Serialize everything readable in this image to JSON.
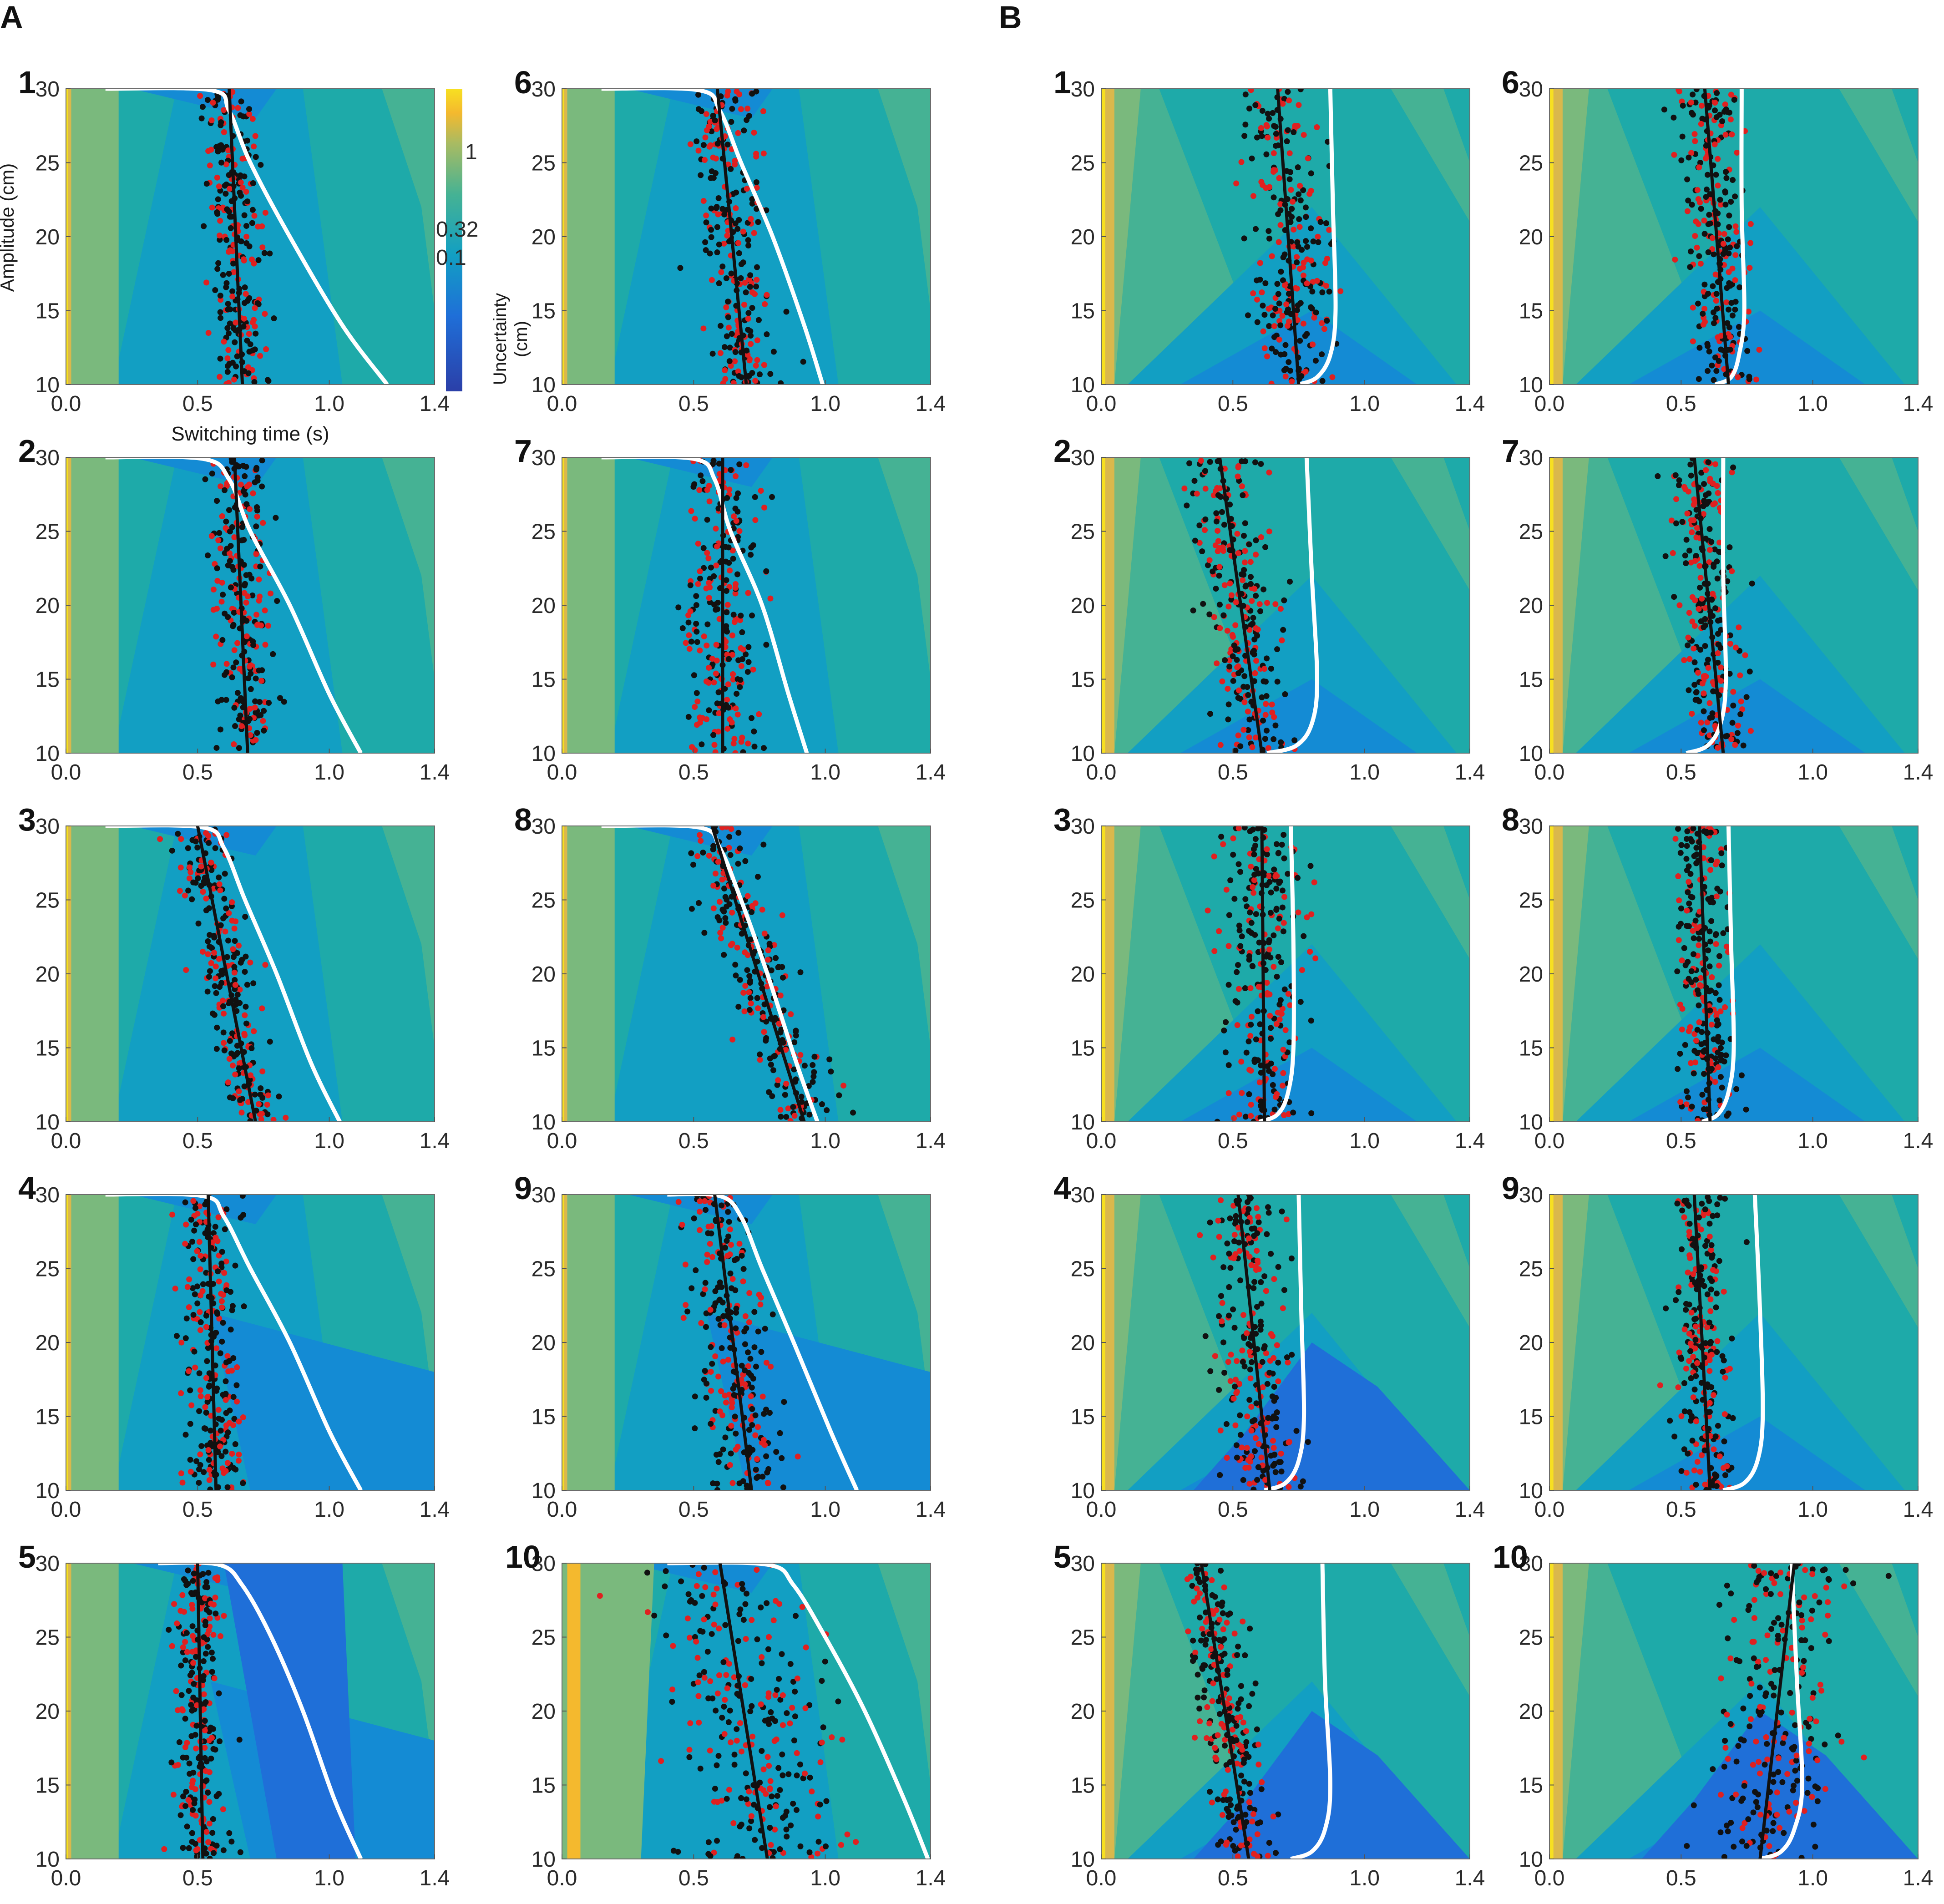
{
  "group_labels": [
    "A",
    "B"
  ],
  "palette": {
    "levels": [
      "#2b3fa8",
      "#1f6fd8",
      "#148bd4",
      "#129fc3",
      "#1eaaa9",
      "#45b294",
      "#7ab97d",
      "#a9bb62",
      "#dab84c",
      "#f4b92e",
      "#f7e021"
    ],
    "dot_red": "#e02020",
    "dot_black": "#111111",
    "fit_line": "#111111",
    "optimal_curve": "#ffffff"
  },
  "colorbar": {
    "title": "Uncertainty\n(cm)",
    "title_lines": [
      "Uncertainty",
      "(cm)"
    ],
    "tick_labels": [
      "1",
      "0.32",
      "0.1"
    ],
    "tick_values": [
      1,
      0.32,
      0.1
    ]
  },
  "axes": {
    "xlabel": "Switching time (s)",
    "ylabel": "Amplitude (cm)",
    "xlim": [
      0.0,
      1.4
    ],
    "ylim": [
      10,
      30
    ],
    "xticks": [
      0.0,
      0.5,
      1.0,
      1.4
    ],
    "xtick_labels": [
      "0.0",
      "0.5",
      "1.0",
      "1.4"
    ],
    "yticks": [
      10,
      15,
      20,
      25,
      30
    ],
    "ytick_labels": [
      "10",
      "15",
      "20",
      "25",
      "30"
    ]
  },
  "chart_data": [
    {
      "group": "A",
      "panel": "1",
      "type": "scatter",
      "fit_line": {
        "x": [
          0.62,
          0.67
        ],
        "y": [
          30,
          10
        ]
      },
      "optimal_curve": {
        "x": [
          0.15,
          0.55,
          0.62,
          0.7,
          0.85,
          1.05,
          1.22
        ],
        "y": [
          30,
          29.9,
          28.5,
          25,
          20,
          14,
          10
        ]
      },
      "scatter_spread": 0.09
    },
    {
      "group": "A",
      "panel": "2",
      "type": "scatter",
      "fit_line": {
        "x": [
          0.64,
          0.69
        ],
        "y": [
          30,
          10
        ]
      },
      "optimal_curve": {
        "x": [
          0.15,
          0.52,
          0.62,
          0.7,
          0.85,
          1.0,
          1.12
        ],
        "y": [
          30,
          29.9,
          28.5,
          25,
          20,
          14,
          10
        ]
      },
      "scatter_spread": 0.1
    },
    {
      "group": "A",
      "panel": "3",
      "type": "scatter",
      "fit_line": {
        "x": [
          0.5,
          0.72
        ],
        "y": [
          30,
          10
        ]
      },
      "optimal_curve": {
        "x": [
          0.15,
          0.52,
          0.6,
          0.68,
          0.8,
          0.93,
          1.04
        ],
        "y": [
          30,
          29.9,
          28.5,
          25,
          20,
          14,
          10
        ]
      },
      "scatter_spread": 0.1
    },
    {
      "group": "A",
      "panel": "4",
      "type": "scatter",
      "fit_line": {
        "x": [
          0.54,
          0.57
        ],
        "y": [
          30,
          10
        ]
      },
      "optimal_curve": {
        "x": [
          0.15,
          0.52,
          0.6,
          0.7,
          0.85,
          1.0,
          1.12
        ],
        "y": [
          30,
          29.9,
          28.5,
          25,
          20,
          14,
          10
        ]
      },
      "scatter_spread": 0.1
    },
    {
      "group": "A",
      "panel": "5",
      "type": "scatter",
      "fit_line": {
        "x": [
          0.5,
          0.52
        ],
        "y": [
          30,
          10
        ]
      },
      "optimal_curve": {
        "x": [
          0.35,
          0.58,
          0.67,
          0.78,
          0.9,
          1.02,
          1.12
        ],
        "y": [
          30,
          29.9,
          28.5,
          25,
          20,
          14,
          10
        ]
      },
      "scatter_spread": 0.08
    },
    {
      "group": "A",
      "panel": "6",
      "type": "scatter",
      "fit_line": {
        "x": [
          0.59,
          0.7
        ],
        "y": [
          30,
          10
        ]
      },
      "optimal_curve": {
        "x": [
          0.15,
          0.52,
          0.6,
          0.68,
          0.8,
          0.92,
          0.99
        ],
        "y": [
          30,
          29.9,
          28.5,
          25,
          20,
          14,
          10
        ]
      },
      "scatter_spread": 0.12
    },
    {
      "group": "A",
      "panel": "7",
      "type": "scatter",
      "fit_line": {
        "x": [
          0.61,
          0.61
        ],
        "y": [
          30,
          10
        ]
      },
      "optimal_curve": {
        "x": [
          0.15,
          0.5,
          0.58,
          0.64,
          0.76,
          0.86,
          0.93
        ],
        "y": [
          30,
          29.9,
          28.5,
          25,
          20,
          14,
          10
        ]
      },
      "scatter_spread": 0.12
    },
    {
      "group": "A",
      "panel": "8",
      "type": "scatter",
      "fit_line": {
        "x": [
          0.57,
          0.92
        ],
        "y": [
          30,
          10
        ]
      },
      "optimal_curve": {
        "x": [
          0.15,
          0.52,
          0.6,
          0.68,
          0.78,
          0.89,
          0.97
        ],
        "y": [
          30,
          29.9,
          28.5,
          25,
          20,
          14,
          10
        ]
      },
      "scatter_spread": 0.12
    },
    {
      "group": "A",
      "panel": "9",
      "type": "scatter",
      "fit_line": {
        "x": [
          0.58,
          0.72
        ],
        "y": [
          30,
          10
        ]
      },
      "optimal_curve": {
        "x": [
          0.4,
          0.6,
          0.68,
          0.76,
          0.88,
          1.02,
          1.12
        ],
        "y": [
          30,
          29.9,
          28.5,
          25,
          20,
          14,
          10
        ]
      },
      "scatter_spread": 0.12
    },
    {
      "group": "A",
      "panel": "10",
      "type": "scatter",
      "fit_line": {
        "x": [
          0.6,
          0.78
        ],
        "y": [
          30,
          10
        ]
      },
      "optimal_curve": {
        "x": [
          0.4,
          0.78,
          0.88,
          1.0,
          1.15,
          1.3,
          1.39
        ],
        "y": [
          30,
          29.9,
          28.5,
          25,
          20,
          14,
          10
        ]
      },
      "scatter_spread": 0.28
    },
    {
      "group": "B",
      "panel": "1",
      "type": "scatter",
      "fit_line": {
        "x": [
          0.67,
          0.75
        ],
        "y": [
          30,
          10
        ]
      },
      "optimal_curve": {
        "x": [
          0.87,
          0.88,
          0.89,
          0.87,
          0.82,
          0.75
        ],
        "y": [
          30,
          22,
          15,
          12,
          10.5,
          10
        ]
      },
      "scatter_spread": 0.14
    },
    {
      "group": "B",
      "panel": "2",
      "type": "scatter",
      "fit_line": {
        "x": [
          0.45,
          0.61
        ],
        "y": [
          30,
          10
        ]
      },
      "optimal_curve": {
        "x": [
          0.78,
          0.8,
          0.82,
          0.8,
          0.74,
          0.63
        ],
        "y": [
          30,
          22,
          15,
          12,
          10.5,
          10
        ]
      },
      "scatter_spread": 0.12
    },
    {
      "group": "B",
      "panel": "3",
      "type": "scatter",
      "fit_line": {
        "x": [
          0.61,
          0.62
        ],
        "y": [
          30,
          10
        ]
      },
      "optimal_curve": {
        "x": [
          0.72,
          0.73,
          0.73,
          0.71,
          0.67,
          0.6
        ],
        "y": [
          30,
          22,
          15,
          12,
          10.5,
          10
        ]
      },
      "scatter_spread": 0.13
    },
    {
      "group": "B",
      "panel": "4",
      "type": "scatter",
      "fit_line": {
        "x": [
          0.52,
          0.64
        ],
        "y": [
          30,
          10
        ]
      },
      "optimal_curve": {
        "x": [
          0.75,
          0.76,
          0.77,
          0.75,
          0.7,
          0.62
        ],
        "y": [
          30,
          22,
          15,
          12,
          10.5,
          10
        ]
      },
      "scatter_spread": 0.13
    },
    {
      "group": "B",
      "panel": "5",
      "type": "scatter",
      "fit_line": {
        "x": [
          0.38,
          0.56
        ],
        "y": [
          30,
          10
        ]
      },
      "optimal_curve": {
        "x": [
          0.84,
          0.85,
          0.87,
          0.85,
          0.8,
          0.72
        ],
        "y": [
          30,
          22,
          15,
          12,
          10.5,
          10
        ]
      },
      "scatter_spread": 0.09
    },
    {
      "group": "B",
      "panel": "6",
      "type": "scatter",
      "fit_line": {
        "x": [
          0.59,
          0.68
        ],
        "y": [
          30,
          10
        ]
      },
      "optimal_curve": {
        "x": [
          0.73,
          0.73,
          0.74,
          0.72,
          0.69,
          0.63
        ],
        "y": [
          30,
          22,
          15,
          12,
          10.5,
          10
        ]
      },
      "scatter_spread": 0.1
    },
    {
      "group": "B",
      "panel": "7",
      "type": "scatter",
      "fit_line": {
        "x": [
          0.55,
          0.66
        ],
        "y": [
          30,
          10
        ]
      },
      "optimal_curve": {
        "x": [
          0.66,
          0.66,
          0.67,
          0.65,
          0.6,
          0.52
        ],
        "y": [
          30,
          22,
          15,
          12,
          10.5,
          10
        ]
      },
      "scatter_spread": 0.1
    },
    {
      "group": "B",
      "panel": "8",
      "type": "scatter",
      "fit_line": {
        "x": [
          0.57,
          0.61
        ],
        "y": [
          30,
          10
        ]
      },
      "optimal_curve": {
        "x": [
          0.68,
          0.69,
          0.7,
          0.68,
          0.64,
          0.58
        ],
        "y": [
          30,
          22,
          15,
          12,
          10.5,
          10
        ]
      },
      "scatter_spread": 0.1
    },
    {
      "group": "B",
      "panel": "9",
      "type": "scatter",
      "fit_line": {
        "x": [
          0.55,
          0.61
        ],
        "y": [
          30,
          10
        ]
      },
      "optimal_curve": {
        "x": [
          0.78,
          0.8,
          0.81,
          0.79,
          0.74,
          0.66
        ],
        "y": [
          30,
          22,
          15,
          12,
          10.5,
          10
        ]
      },
      "scatter_spread": 0.09
    },
    {
      "group": "B",
      "panel": "10",
      "type": "scatter",
      "fit_line": {
        "x": [
          0.93,
          0.8
        ],
        "y": [
          30,
          10
        ]
      },
      "optimal_curve": {
        "x": [
          0.92,
          0.94,
          0.96,
          0.93,
          0.88,
          0.8
        ],
        "y": [
          30,
          22,
          15,
          12,
          10.5,
          10
        ]
      },
      "scatter_spread": 0.2
    }
  ]
}
